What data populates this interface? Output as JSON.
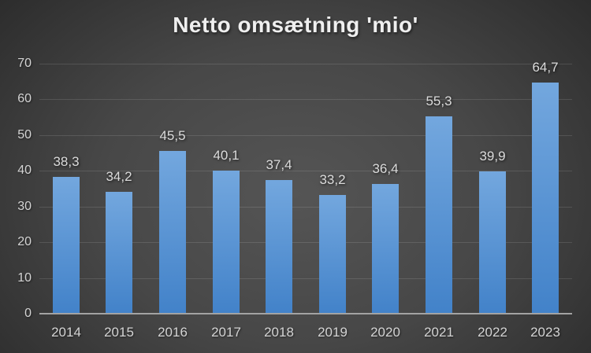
{
  "chart_data": {
    "type": "bar",
    "title": "Netto omsætning 'mio'",
    "xlabel": "",
    "ylabel": "",
    "categories": [
      "2014",
      "2015",
      "2016",
      "2017",
      "2018",
      "2019",
      "2020",
      "2021",
      "2022",
      "2023"
    ],
    "values": [
      38.3,
      34.2,
      45.5,
      40.1,
      37.4,
      33.2,
      36.4,
      55.3,
      39.9,
      64.7
    ],
    "value_labels": [
      "38,3",
      "34,2",
      "45,5",
      "40,1",
      "37,4",
      "33,2",
      "36,4",
      "55,3",
      "39,9",
      "64,7"
    ],
    "ylim": [
      0,
      70
    ],
    "ytick_step": 10,
    "ytick_labels": [
      "0",
      "10",
      "20",
      "30",
      "40",
      "50",
      "60",
      "70"
    ],
    "grid": true,
    "legend": "none",
    "colors": {
      "bar_top": "#73A7DE",
      "bar_bottom": "#4282C9",
      "background_center": "#555555",
      "background_edge": "#262626",
      "gridline": "rgba(255,255,255,0.12)",
      "axis_line": "#A3A3A3",
      "tick_label": "#D4D4D4",
      "data_label": "#DCDCDC",
      "title": "#EFEFEF"
    }
  }
}
